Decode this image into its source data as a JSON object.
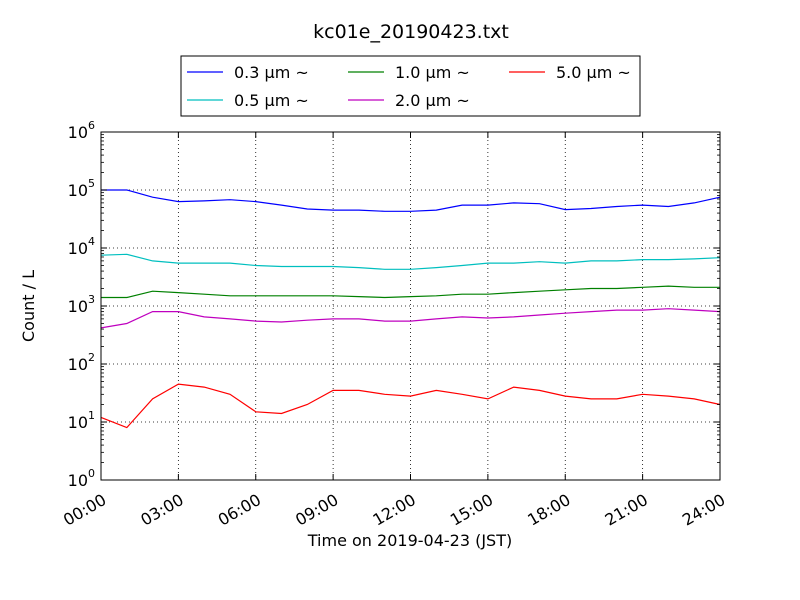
{
  "chart_data": {
    "type": "line",
    "title": "kc01e_20190423.txt",
    "xlabel": "Time on 2019-04-23 (JST)",
    "ylabel": "Count / L",
    "yscale": "log",
    "ylim": [
      1,
      1000000
    ],
    "xlim": [
      "2019-04-23 00:00",
      "2019-04-24 00:00"
    ],
    "grid": true,
    "legend_position": "top-center",
    "x_tick_labels": [
      "00:00",
      "03:00",
      "06:00",
      "09:00",
      "12:00",
      "15:00",
      "18:00",
      "21:00",
      "24:00"
    ],
    "y_tick_labels": [
      {
        "base": "10",
        "exp": "0"
      },
      {
        "base": "10",
        "exp": "1"
      },
      {
        "base": "10",
        "exp": "2"
      },
      {
        "base": "10",
        "exp": "3"
      },
      {
        "base": "10",
        "exp": "4"
      },
      {
        "base": "10",
        "exp": "5"
      },
      {
        "base": "10",
        "exp": "6"
      }
    ],
    "x": [
      "00:00",
      "01:00",
      "02:00",
      "03:00",
      "04:00",
      "05:00",
      "06:00",
      "07:00",
      "08:00",
      "09:00",
      "10:00",
      "11:00",
      "12:00",
      "13:00",
      "14:00",
      "15:00",
      "16:00",
      "17:00",
      "18:00",
      "19:00",
      "20:00",
      "21:00",
      "22:00",
      "23:00",
      "24:00"
    ],
    "series": [
      {
        "name": "0.3 μm ~",
        "color": "#0000ff",
        "values": [
          100000,
          100000,
          75000,
          63000,
          65000,
          68000,
          63000,
          55000,
          47000,
          45000,
          45000,
          43000,
          43000,
          45000,
          55000,
          55000,
          60000,
          58000,
          46000,
          48000,
          52000,
          55000,
          52000,
          60000,
          75000
        ]
      },
      {
        "name": "0.5 μm ~",
        "color": "#00bfbf",
        "values": [
          7500,
          7800,
          6000,
          5500,
          5500,
          5500,
          5000,
          4800,
          4800,
          4800,
          4600,
          4300,
          4300,
          4600,
          5000,
          5500,
          5500,
          5800,
          5500,
          6000,
          6000,
          6300,
          6300,
          6500,
          6800
        ]
      },
      {
        "name": "1.0 μm ~",
        "color": "#008000",
        "values": [
          1400,
          1400,
          1800,
          1700,
          1600,
          1500,
          1500,
          1500,
          1500,
          1500,
          1450,
          1400,
          1450,
          1500,
          1600,
          1600,
          1700,
          1800,
          1900,
          2000,
          2000,
          2100,
          2200,
          2100,
          2100
        ]
      },
      {
        "name": "2.0 μm ~",
        "color": "#bf00bf",
        "values": [
          420,
          500,
          800,
          800,
          650,
          600,
          550,
          530,
          570,
          600,
          600,
          550,
          550,
          600,
          650,
          620,
          650,
          700,
          750,
          800,
          850,
          850,
          900,
          850,
          800
        ]
      },
      {
        "name": "5.0 μm ~",
        "color": "#ff0000",
        "values": [
          12,
          8,
          25,
          45,
          40,
          30,
          15,
          14,
          20,
          35,
          35,
          30,
          28,
          35,
          30,
          25,
          40,
          35,
          28,
          25,
          25,
          30,
          28,
          25,
          20
        ]
      }
    ]
  }
}
